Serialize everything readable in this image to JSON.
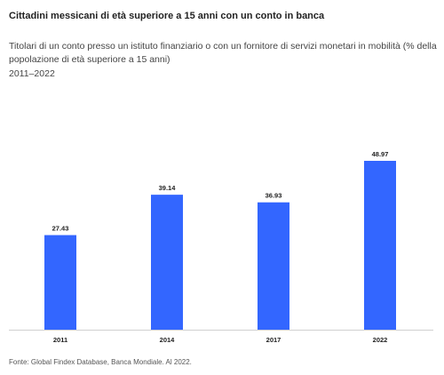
{
  "header": {
    "title": "Cittadini messicani di età superiore a 15 anni con un conto in banca",
    "subtitle": "Titolari di un conto presso un istituto finanziario o con un fornitore di servizi monetari in mobilità (% della popolazione di età superiore a 15 anni)",
    "period": "2011–2022"
  },
  "footer": {
    "source": "Fonte: Global Findex Database, Banca Mondiale. Al 2022."
  },
  "colors": {
    "bar": "#3366ff",
    "axis": "#d0d0d0",
    "label": "#222222"
  },
  "chart_data": {
    "type": "bar",
    "categories": [
      "2011",
      "2014",
      "2017",
      "2022"
    ],
    "values": [
      27.43,
      39.14,
      36.93,
      48.97
    ],
    "data_labels": [
      "27.43",
      "39.14",
      "36.93",
      "48.97"
    ],
    "ylim": [
      0,
      55
    ],
    "grid": false,
    "legend": "none"
  }
}
